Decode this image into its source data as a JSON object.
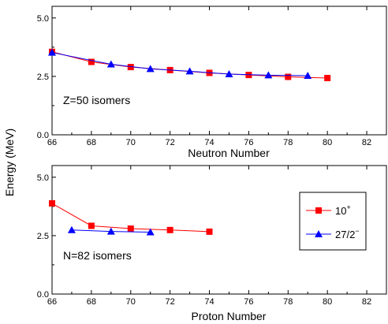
{
  "shared": {
    "ylabel": "Energy (MeV)"
  },
  "chart_data": [
    {
      "type": "line",
      "xlabel": "Neutron Number",
      "xlim": [
        66,
        83
      ],
      "ylim": [
        0,
        5.5
      ],
      "xticks": [
        66,
        68,
        70,
        72,
        74,
        76,
        78,
        80,
        82
      ],
      "yticks": [
        0.0,
        2.5,
        5.0
      ],
      "xtick_labels": [
        "66",
        "68",
        "70",
        "72",
        "74",
        "76",
        "78",
        "80",
        "82"
      ],
      "ytick_labels": [
        "0.0",
        "2.5",
        "5.0"
      ],
      "annotation": "Z=50 isomers",
      "series": [
        {
          "marker": "square",
          "color": "#ff0000",
          "x": [
            66,
            68,
            70,
            72,
            74,
            76,
            78,
            80
          ],
          "y": [
            3.55,
            3.12,
            2.9,
            2.77,
            2.65,
            2.56,
            2.48,
            2.43
          ]
        },
        {
          "marker": "triangle",
          "color": "#0000ff",
          "x": [
            66,
            69,
            71,
            73,
            75,
            77,
            79
          ],
          "y": [
            3.52,
            3.02,
            2.82,
            2.72,
            2.6,
            2.55,
            2.53
          ]
        }
      ]
    },
    {
      "type": "line",
      "xlabel": "Proton Number",
      "xlim": [
        66,
        83
      ],
      "ylim": [
        0,
        5.5
      ],
      "xticks": [
        66,
        68,
        70,
        72,
        74,
        76,
        78,
        80,
        82
      ],
      "yticks": [
        0.0,
        2.5,
        5.0
      ],
      "xtick_labels": [
        "66",
        "68",
        "70",
        "72",
        "74",
        "76",
        "78",
        "80",
        "82"
      ],
      "ytick_labels": [
        "0.0",
        "2.5",
        "5.0"
      ],
      "annotation": "N=82 isomers",
      "legend": {
        "position": "right",
        "entries": [
          {
            "base": "10",
            "sup": "+",
            "marker": "square",
            "color": "#ff0000"
          },
          {
            "base": "27/2",
            "sup": "−",
            "marker": "triangle",
            "color": "#0000ff"
          }
        ]
      },
      "series": [
        {
          "marker": "square",
          "color": "#ff0000",
          "x": [
            66,
            68,
            70,
            72,
            74
          ],
          "y": [
            3.88,
            2.92,
            2.8,
            2.74,
            2.67
          ]
        },
        {
          "marker": "triangle",
          "color": "#0000ff",
          "x": [
            67,
            69,
            71
          ],
          "y": [
            2.74,
            2.68,
            2.65
          ]
        }
      ]
    }
  ]
}
